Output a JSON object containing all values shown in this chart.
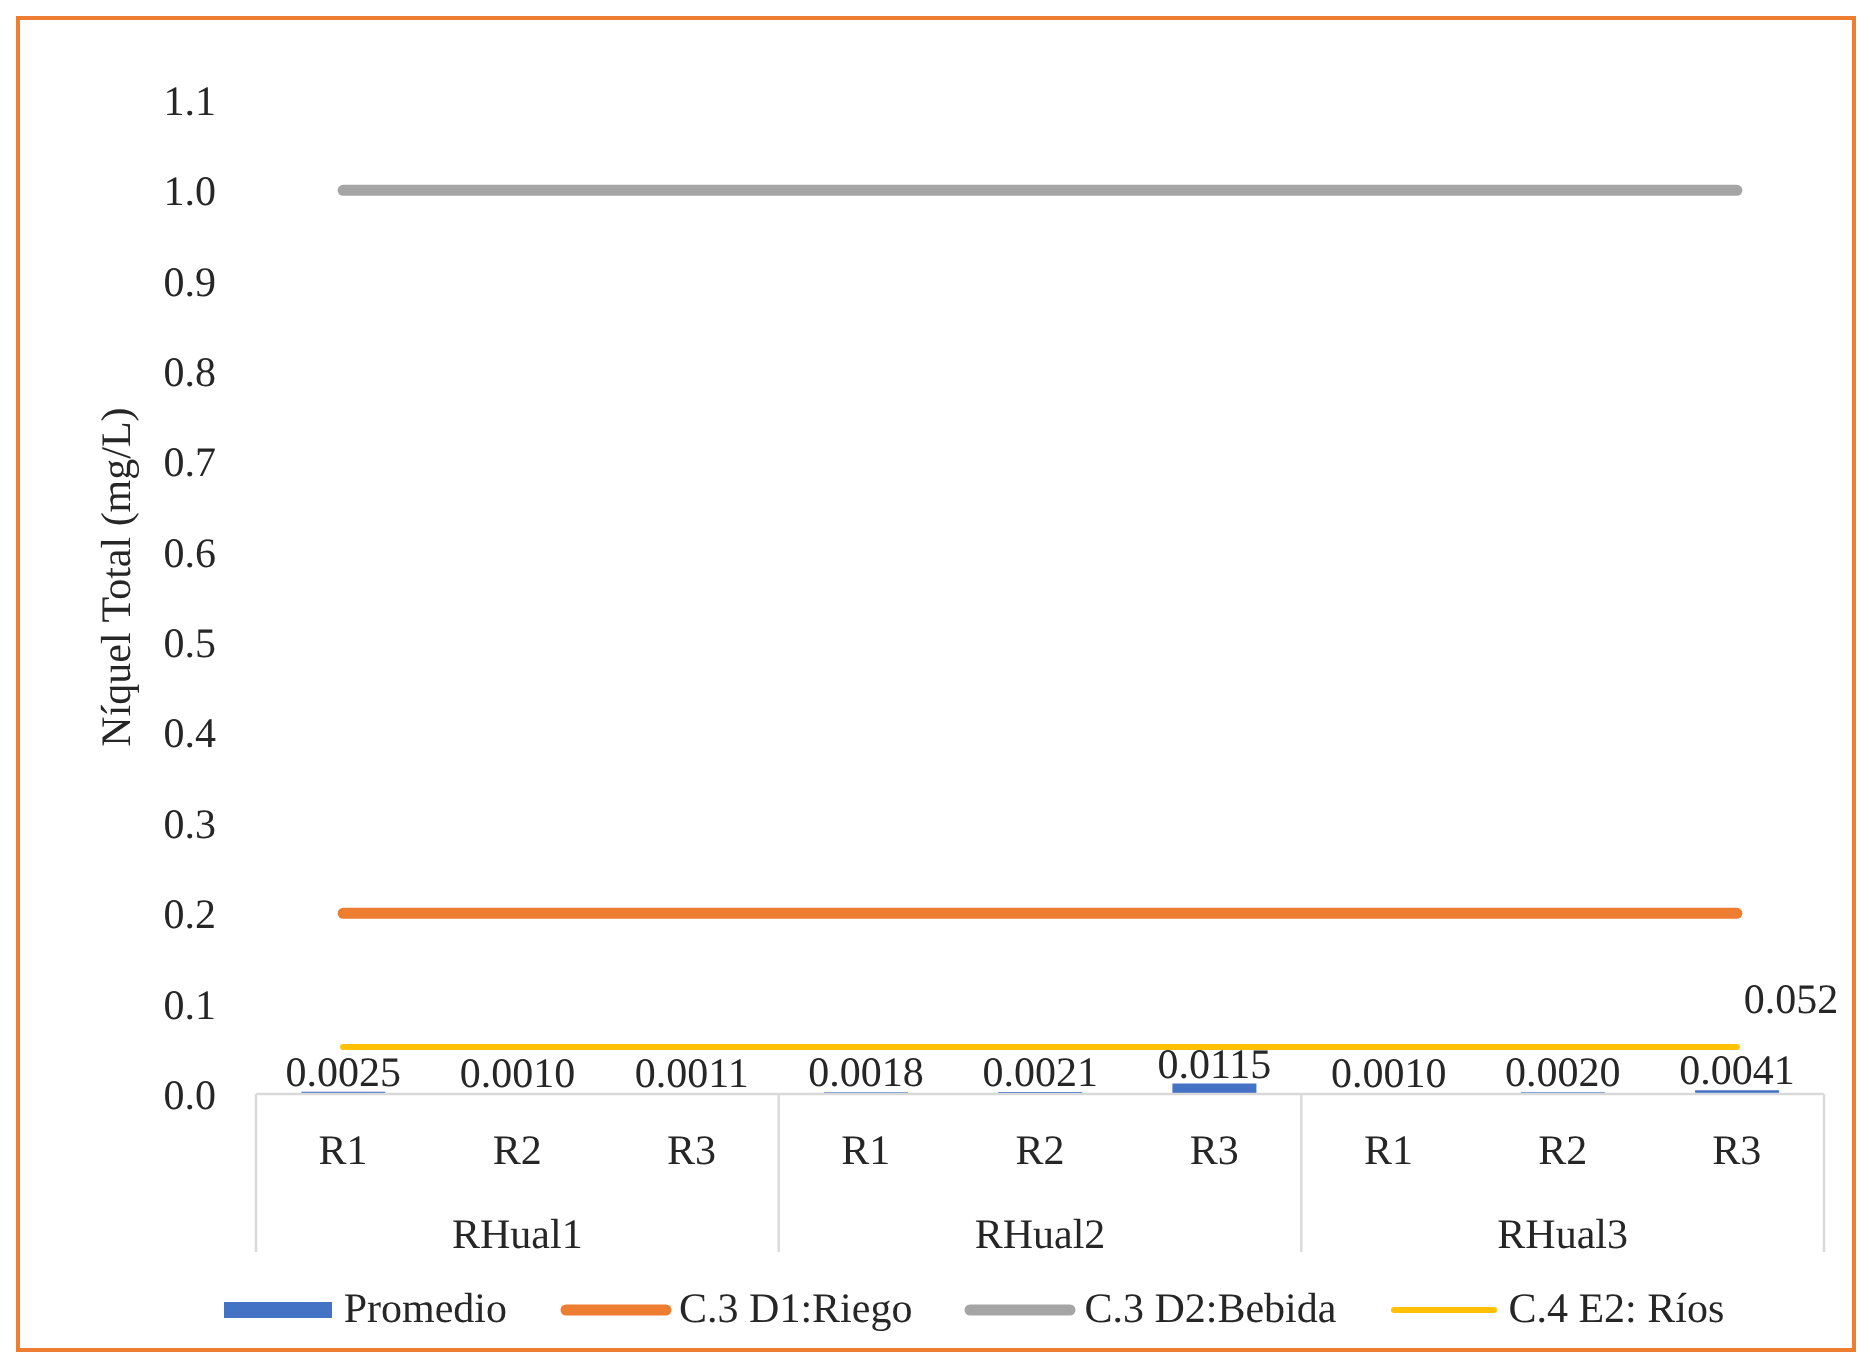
{
  "chart_data": {
    "type": "bar",
    "ylabel": "Níquel Total (mg/L)",
    "categories": [
      "R1",
      "R2",
      "R3",
      "R1",
      "R2",
      "R3",
      "R1",
      "R2",
      "R3"
    ],
    "annotations": [
      "RHual1",
      "RHual2",
      "RHual3"
    ],
    "series": [
      {
        "name": "Promedio",
        "color": "#4472c4",
        "values": [
          0.0025,
          0.001,
          0.0011,
          0.0018,
          0.0021,
          0.0115,
          0.001,
          0.002,
          0.0041
        ],
        "value_labels": [
          "0.0025",
          "0.0010",
          "0.0011",
          "0.0018",
          "0.0021",
          "0.0115",
          "0.0010",
          "0.0020",
          "0.0041"
        ]
      },
      {
        "name": "C.3 D1:Riego",
        "type": "line",
        "color": "#ed7d31",
        "values": [
          0.2,
          0.2,
          0.2,
          0.2,
          0.2,
          0.2,
          0.2,
          0.2,
          0.2
        ]
      },
      {
        "name": "C.3 D2:Bebida",
        "type": "line",
        "color": "#a5a5a5",
        "values": [
          1.0,
          1.0,
          1.0,
          1.0,
          1.0,
          1.0,
          1.0,
          1.0,
          1.0
        ]
      },
      {
        "name": "C.4 E2: Ríos",
        "type": "line",
        "color": "#ffc000",
        "values": [
          0.052,
          0.052,
          0.052,
          0.052,
          0.052,
          0.052,
          0.052,
          0.052,
          0.052
        ],
        "value_labels": [
          null,
          null,
          null,
          null,
          null,
          null,
          null,
          null,
          "0.052"
        ]
      }
    ],
    "ylim": [
      0,
      1.1
    ],
    "yticks": [
      {
        "value": 0,
        "label": "0.0"
      },
      0.1,
      0.2,
      0.3,
      0.4,
      0.5,
      0.6,
      0.7,
      0.8,
      0.9,
      {
        "value": 1,
        "label": "1.0"
      },
      1.1
    ],
    "legend": "bottom",
    "marker": "none"
  }
}
